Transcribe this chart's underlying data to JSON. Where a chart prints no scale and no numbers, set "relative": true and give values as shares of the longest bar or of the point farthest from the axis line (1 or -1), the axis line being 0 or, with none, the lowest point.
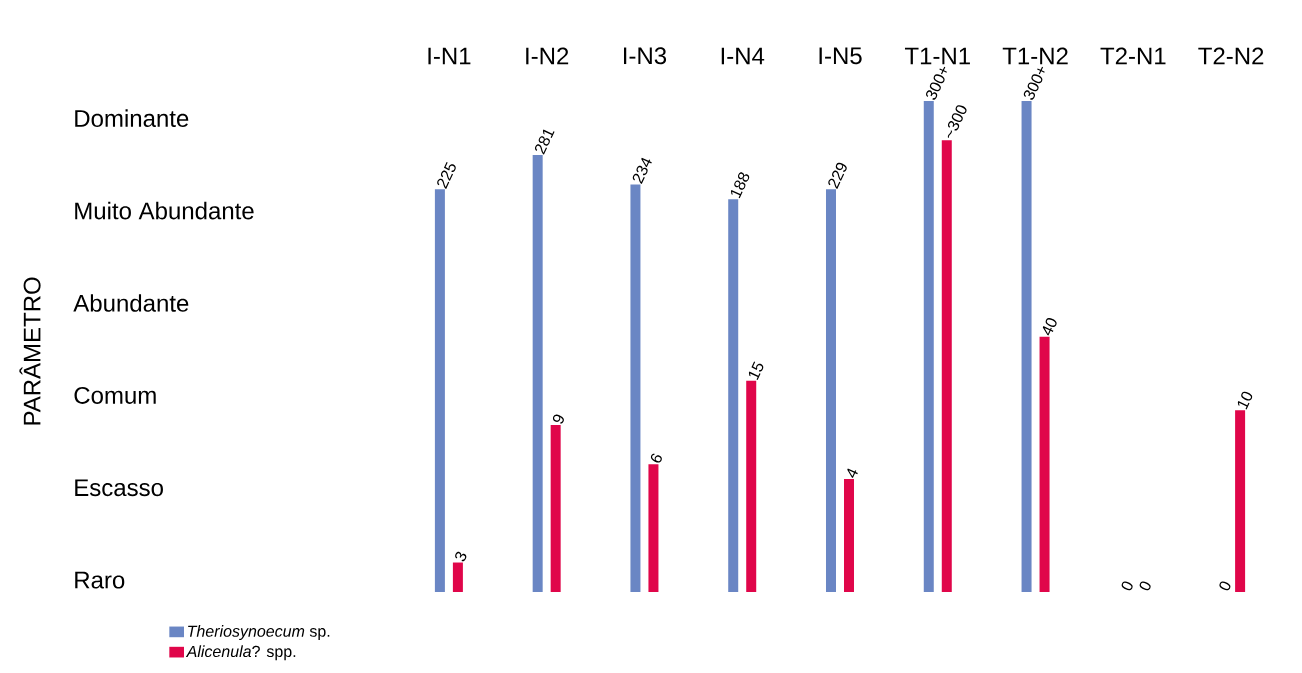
{
  "chart_data": {
    "type": "bar",
    "relative": true,
    "categories": [
      "I-N1",
      "I-N2",
      "I-N3",
      "I-N4",
      "I-N5",
      "T1-N1",
      "T1-N2",
      "T2-N1",
      "T2-N2"
    ],
    "legend": "bottom left",
    "series": [
      {
        "name": "*Theriosynoecum* sp.",
        "color": "#6a86c4",
        "values": [
          0.82,
          0.89,
          0.83,
          0.8,
          0.82,
          1,
          1,
          0,
          0
        ]
      },
      {
        "name": "*Alicenula*? spp.",
        "color": "#e0064a",
        "values": [
          0.06,
          0.34,
          0.26,
          0.43,
          0.23,
          0.92,
          0.52,
          0,
          0.37
        ]
      }
    ],
    "annotations": [
      "PARÂMETRO",
      "Dominante",
      "Muito Abundante",
      "Abundante",
      "Comum",
      "Escasso",
      "Raro",
      {
        "text": "225",
        "x": "I-N1",
        "y": 0.82
      },
      {
        "text": "281",
        "x": "I-N2",
        "y": 0.89
      },
      {
        "text": "234",
        "x": "I-N3",
        "y": 0.83
      },
      {
        "text": "188",
        "x": "I-N4",
        "y": 0.8
      },
      {
        "text": "229",
        "x": "I-N5",
        "y": 0.82
      },
      {
        "text": "300+",
        "x": "T1-N1",
        "y": 1
      },
      {
        "text": "300+",
        "x": "T1-N2",
        "y": 1
      },
      {
        "text": "0",
        "x": "T2-N1",
        "y": 0
      },
      {
        "text": "0",
        "x": "T2-N2",
        "y": 0
      },
      {
        "text": "3",
        "x": "I-N1",
        "y": 0.06
      },
      {
        "text": "9",
        "x": "I-N2",
        "y": 0.34
      },
      {
        "text": "6",
        "x": "I-N3",
        "y": 0.26
      },
      {
        "text": "15",
        "x": "I-N4",
        "y": 0.43
      },
      {
        "text": "4",
        "x": "I-N5",
        "y": 0.23
      },
      {
        "text": "~300",
        "x": "T1-N1",
        "y": 0.92
      },
      {
        "text": "40",
        "x": "T1-N2",
        "y": 0.52
      },
      {
        "text": "0",
        "x": "T2-N1",
        "y": 0
      },
      {
        "text": "10",
        "x": "T2-N2",
        "y": 0.37
      }
    ]
  }
}
